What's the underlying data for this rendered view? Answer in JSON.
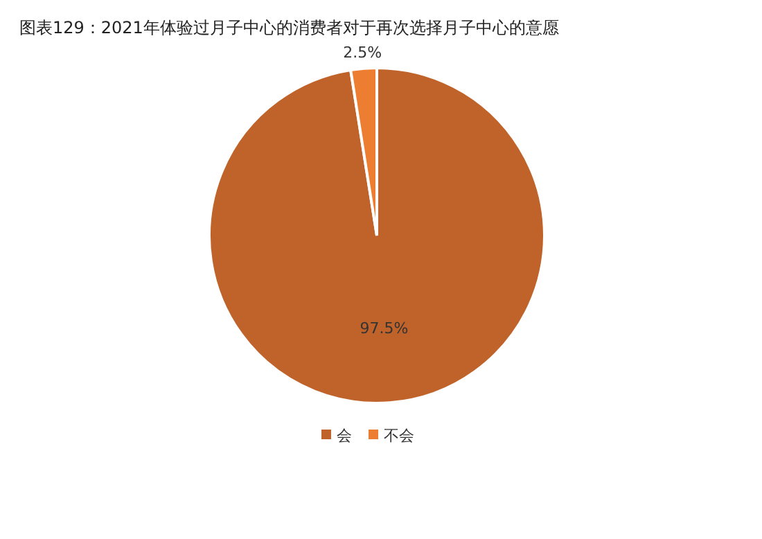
{
  "chart_data": {
    "type": "pie",
    "title": "图表129：2021年体验过月子中心的消费者对于再次选择月子中心的意愿",
    "categories": [
      "会",
      "不会"
    ],
    "values": [
      97.5,
      2.5
    ],
    "colors": [
      "#c0632b",
      "#ed7d31"
    ],
    "value_labels": [
      "97.5%",
      "2.5%"
    ],
    "legend": "bottom"
  }
}
